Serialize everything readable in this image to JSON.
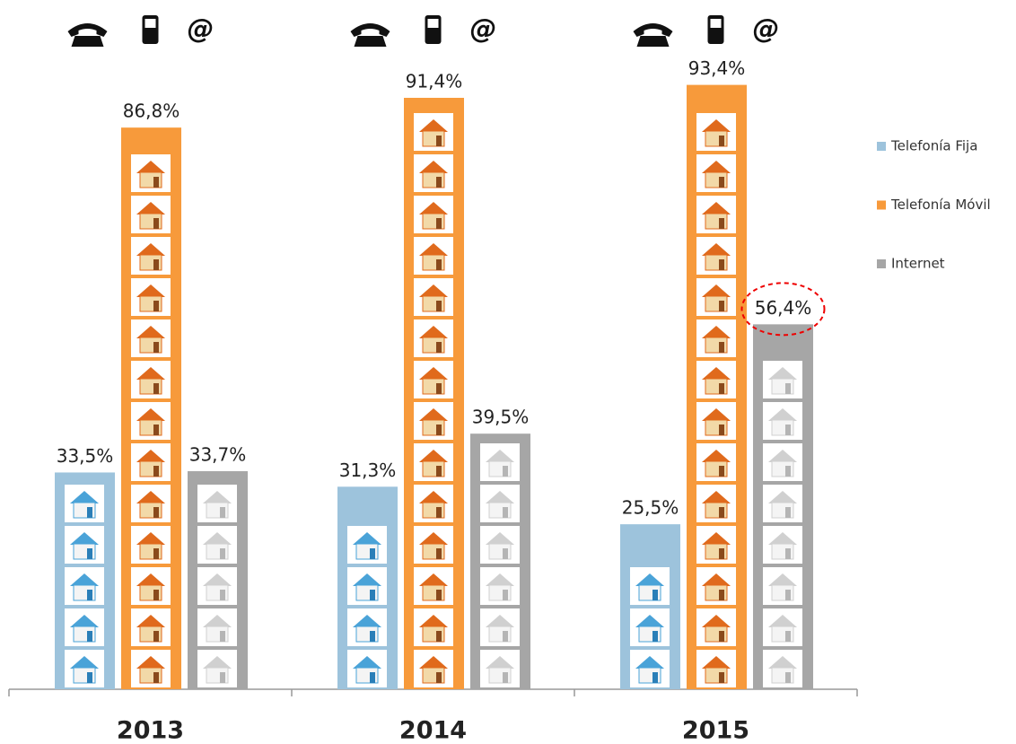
{
  "chart_data": {
    "type": "bar",
    "categories": [
      "2013",
      "2014",
      "2015"
    ],
    "series": [
      {
        "name": "Telefonía Fija",
        "color": "#9dc3dc",
        "values": [
          33.5,
          31.3,
          25.5
        ],
        "value_labels": [
          "33,5%",
          "31,3%",
          "25,5%"
        ]
      },
      {
        "name": "Telefonía Móvil",
        "color": "#f79a3b",
        "values": [
          86.8,
          91.4,
          93.4
        ],
        "value_labels": [
          "86,8%",
          "91,4%",
          "93,4%"
        ]
      },
      {
        "name": "Internet",
        "color": "#a6a6a6",
        "values": [
          33.7,
          39.5,
          56.4
        ],
        "value_labels": [
          "33,7%",
          "39,5%",
          "56,4%"
        ]
      }
    ],
    "header_icon_text": "@",
    "legend": "right",
    "highlight": [
      2,
      2
    ]
  }
}
